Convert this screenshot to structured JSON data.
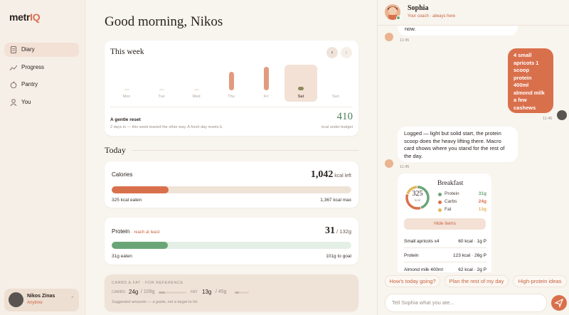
{
  "logo": {
    "text": "metr",
    "accent": "IQ"
  },
  "nav": [
    "Diary",
    "Progress",
    "Pantry",
    "You"
  ],
  "user": {
    "name": "Nikos Zinas",
    "plan": "Anytime"
  },
  "greeting": "Good morning, Nikos",
  "week": {
    "title": "This week",
    "days": [
      "Mon",
      "Tue",
      "Wed",
      "Thu",
      "Fri",
      "Sat",
      "Sun"
    ],
    "values": [
      2,
      2,
      2,
      26,
      33,
      5,
      null
    ],
    "selected": 5,
    "summary_title": "A gentle reset",
    "summary_text": "2 days in — this week leaned the other way. A fresh day resets it.",
    "under": "410",
    "under_label": "kcal under budget"
  },
  "today": "Today",
  "calories": {
    "title": "Calories",
    "left": "1,042",
    "left_unit": "kcal left",
    "eaten": {
      "value": 325,
      "label": "325 kcal eaten"
    },
    "max": {
      "value": 1367,
      "label": "1,367 kcal max"
    }
  },
  "protein": {
    "title": "Protein",
    "note": "· reach at least",
    "current": "31",
    "target": {
      "value": 132,
      "label": "/ 132g"
    },
    "eaten": {
      "value": 31,
      "label": "31g eaten"
    },
    "remaining": "101g to goal"
  },
  "reference": {
    "title": "CARBS & FAT · FOR REFERENCE",
    "carbs": {
      "name": "CARBS",
      "amount": {
        "value": 24,
        "label": "24g"
      },
      "target": {
        "value": 109,
        "label": "/ 109g"
      }
    },
    "fat": {
      "name": "FAT",
      "amount": {
        "value": 13,
        "label": "13g"
      },
      "target": {
        "value": 45,
        "label": "/ 45g"
      }
    },
    "note": "Suggested amounts — a guide, not a target to hit."
  },
  "coach": {
    "name": "Sophia",
    "status": "Your coach · always here"
  },
  "messages": [
    {
      "from": "coach",
      "text": "now.",
      "time": "11:45"
    },
    {
      "from": "user",
      "text": "4 small apricots 1 scoop protein 400ml almond milk a few cashews",
      "time": "11:45"
    },
    {
      "from": "coach",
      "text": "Logged — light but solid start, the protein scoop does the heavy lifting there. Macro card shows where you stand for the rest of the day.",
      "time": "11:45"
    }
  ],
  "breakfast": {
    "title": "Breakfast",
    "total": "325",
    "unit": "kcal",
    "macros": [
      {
        "name": "Protein",
        "amount": {
          "value": 31,
          "label": "31g"
        },
        "color": "#6aa577"
      },
      {
        "name": "Carbs",
        "amount": {
          "value": 24,
          "label": "24g"
        },
        "color": "#d9704c"
      },
      {
        "name": "Fat",
        "amount": {
          "value": 13,
          "label": "13g"
        },
        "color": "#e3b75c"
      }
    ],
    "toggle": "Hide items",
    "items": [
      {
        "name": "Small apricots x4",
        "detail": "60 kcal · 1g P"
      },
      {
        "name": "Protein",
        "detail": "123 kcal · 26g P"
      },
      {
        "name": "Almond milk 400ml",
        "detail": "62 kcal · 2g P"
      }
    ]
  },
  "suggestions": [
    "How's today going?",
    "Plan the rest of my day",
    "High-protein ideas"
  ],
  "input_placeholder": "Tell Sophia what you ate..."
}
